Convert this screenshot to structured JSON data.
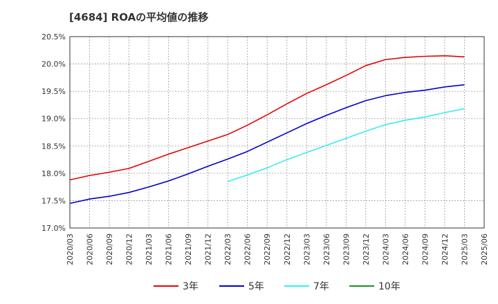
{
  "title": "[4684]  ROAの平均値の推移",
  "chart_data": {
    "type": "line",
    "title": "[4684]  ROAの平均値の推移",
    "xlabel": "",
    "ylabel": "",
    "x": [
      "2020/03",
      "2020/06",
      "2020/09",
      "2020/12",
      "2021/03",
      "2021/06",
      "2021/09",
      "2021/12",
      "2022/03",
      "2022/06",
      "2022/09",
      "2022/12",
      "2023/03",
      "2023/06",
      "2023/09",
      "2023/12",
      "2024/03",
      "2024/06",
      "2024/09",
      "2024/12",
      "2025/03",
      "2025/06"
    ],
    "ylim": [
      17.0,
      20.5
    ],
    "yticks": [
      "17.0%",
      "17.5%",
      "18.0%",
      "18.5%",
      "19.0%",
      "19.5%",
      "20.0%",
      "20.5%"
    ],
    "grid": true,
    "legend_position": "bottom",
    "series": [
      {
        "name": "3年",
        "color": "#e60000",
        "values": [
          17.88,
          17.96,
          18.02,
          18.09,
          18.22,
          18.35,
          18.47,
          18.59,
          18.71,
          18.88,
          19.07,
          19.27,
          19.46,
          19.62,
          19.79,
          19.97,
          20.08,
          20.12,
          20.14,
          20.15,
          20.13,
          null
        ]
      },
      {
        "name": "5年",
        "color": "#0000cc",
        "values": [
          17.45,
          17.53,
          17.58,
          17.65,
          17.75,
          17.86,
          17.99,
          18.13,
          18.26,
          18.4,
          18.57,
          18.74,
          18.91,
          19.06,
          19.2,
          19.33,
          19.42,
          19.48,
          19.52,
          19.58,
          19.62,
          null
        ]
      },
      {
        "name": "7年",
        "color": "#33eeee",
        "values": [
          null,
          null,
          null,
          null,
          null,
          null,
          null,
          null,
          17.85,
          17.97,
          18.1,
          18.25,
          18.38,
          18.51,
          18.64,
          18.77,
          18.89,
          18.97,
          19.03,
          19.11,
          19.18,
          null
        ]
      },
      {
        "name": "10年",
        "color": "#228b22",
        "values": [
          null,
          null,
          null,
          null,
          null,
          null,
          null,
          null,
          null,
          null,
          null,
          null,
          null,
          null,
          null,
          null,
          null,
          null,
          null,
          null,
          null,
          null
        ]
      }
    ]
  }
}
